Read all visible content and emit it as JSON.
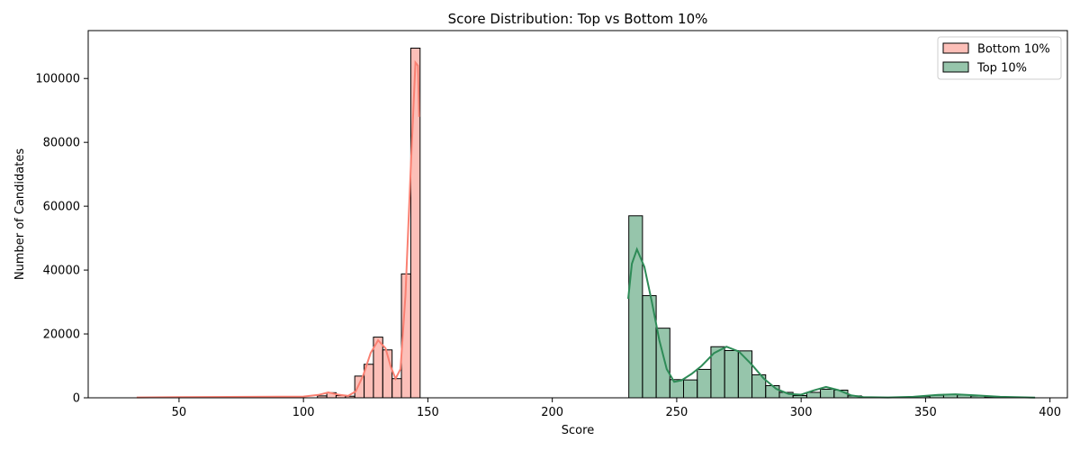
{
  "chart_data": {
    "type": "bar",
    "title": "Score Distribution: Top vs Bottom 10%",
    "xlabel": "Score",
    "ylabel": "Number of Candidates",
    "xlim": [
      13.5,
      407
    ],
    "ylim": [
      0,
      115000
    ],
    "xticks": [
      50,
      100,
      150,
      200,
      250,
      300,
      350,
      400
    ],
    "yticks": [
      0,
      20000,
      40000,
      60000,
      80000,
      100000
    ],
    "grid": false,
    "legend_position": "top-right",
    "series": [
      {
        "name": "Bottom 10%",
        "color": "#fa8072",
        "bar_width": 3.75,
        "bars": [
          {
            "x": 107.5,
            "y": 600
          },
          {
            "x": 111.25,
            "y": 1600
          },
          {
            "x": 115,
            "y": 700
          },
          {
            "x": 118.75,
            "y": 500
          },
          {
            "x": 122.5,
            "y": 6800
          },
          {
            "x": 126.25,
            "y": 10500
          },
          {
            "x": 130,
            "y": 19000
          },
          {
            "x": 133.75,
            "y": 15000
          },
          {
            "x": 137.5,
            "y": 6000
          },
          {
            "x": 141.25,
            "y": 38800
          },
          {
            "x": 145,
            "y": 109500
          }
        ],
        "kde": [
          [
            33,
            100
          ],
          [
            50,
            200
          ],
          [
            80,
            300
          ],
          [
            100,
            400
          ],
          [
            106,
            900
          ],
          [
            110,
            1700
          ],
          [
            114,
            1000
          ],
          [
            118,
            600
          ],
          [
            121,
            2000
          ],
          [
            124,
            7000
          ],
          [
            127,
            14000
          ],
          [
            130,
            18000
          ],
          [
            133,
            15500
          ],
          [
            135,
            10000
          ],
          [
            137,
            6000
          ],
          [
            139,
            9000
          ],
          [
            141,
            32000
          ],
          [
            143,
            70000
          ],
          [
            145,
            105000
          ],
          [
            146,
            104000
          ],
          [
            146.5,
            88000
          ]
        ]
      },
      {
        "name": "Top 10%",
        "color": "#2e8b57",
        "bar_width": 5.5,
        "bars": [
          {
            "x": 233.5,
            "y": 57000
          },
          {
            "x": 239,
            "y": 32000
          },
          {
            "x": 244.5,
            "y": 21800
          },
          {
            "x": 250,
            "y": 5700
          },
          {
            "x": 255.5,
            "y": 5600
          },
          {
            "x": 261,
            "y": 8900
          },
          {
            "x": 266.5,
            "y": 16000
          },
          {
            "x": 272,
            "y": 14800
          },
          {
            "x": 277.5,
            "y": 14700
          },
          {
            "x": 283,
            "y": 7200
          },
          {
            "x": 288.5,
            "y": 3800
          },
          {
            "x": 294,
            "y": 1700
          },
          {
            "x": 299.5,
            "y": 700
          },
          {
            "x": 305,
            "y": 1700
          },
          {
            "x": 310.5,
            "y": 2700
          },
          {
            "x": 316,
            "y": 2400
          },
          {
            "x": 321.5,
            "y": 600
          },
          {
            "x": 327,
            "y": 200
          },
          {
            "x": 332.5,
            "y": 100
          },
          {
            "x": 338,
            "y": 100
          },
          {
            "x": 343.5,
            "y": 200
          },
          {
            "x": 349,
            "y": 400
          },
          {
            "x": 354.5,
            "y": 800
          },
          {
            "x": 360,
            "y": 1100
          },
          {
            "x": 365.5,
            "y": 900
          },
          {
            "x": 371,
            "y": 600
          },
          {
            "x": 376.5,
            "y": 300
          }
        ],
        "kde": [
          [
            230.5,
            31000
          ],
          [
            232,
            42000
          ],
          [
            234,
            46500
          ],
          [
            237,
            41000
          ],
          [
            240,
            30000
          ],
          [
            243,
            18000
          ],
          [
            246,
            9000
          ],
          [
            249,
            5000
          ],
          [
            252,
            5500
          ],
          [
            256,
            7500
          ],
          [
            260,
            10000
          ],
          [
            265,
            14000
          ],
          [
            270,
            16000
          ],
          [
            275,
            14500
          ],
          [
            280,
            10500
          ],
          [
            285,
            6000
          ],
          [
            290,
            2800
          ],
          [
            295,
            1200
          ],
          [
            300,
            1000
          ],
          [
            305,
            2300
          ],
          [
            310,
            3400
          ],
          [
            315,
            2400
          ],
          [
            320,
            800
          ],
          [
            325,
            200
          ],
          [
            335,
            100
          ],
          [
            345,
            300
          ],
          [
            355,
            900
          ],
          [
            362,
            1100
          ],
          [
            370,
            800
          ],
          [
            380,
            300
          ],
          [
            394,
            50
          ]
        ]
      }
    ]
  }
}
